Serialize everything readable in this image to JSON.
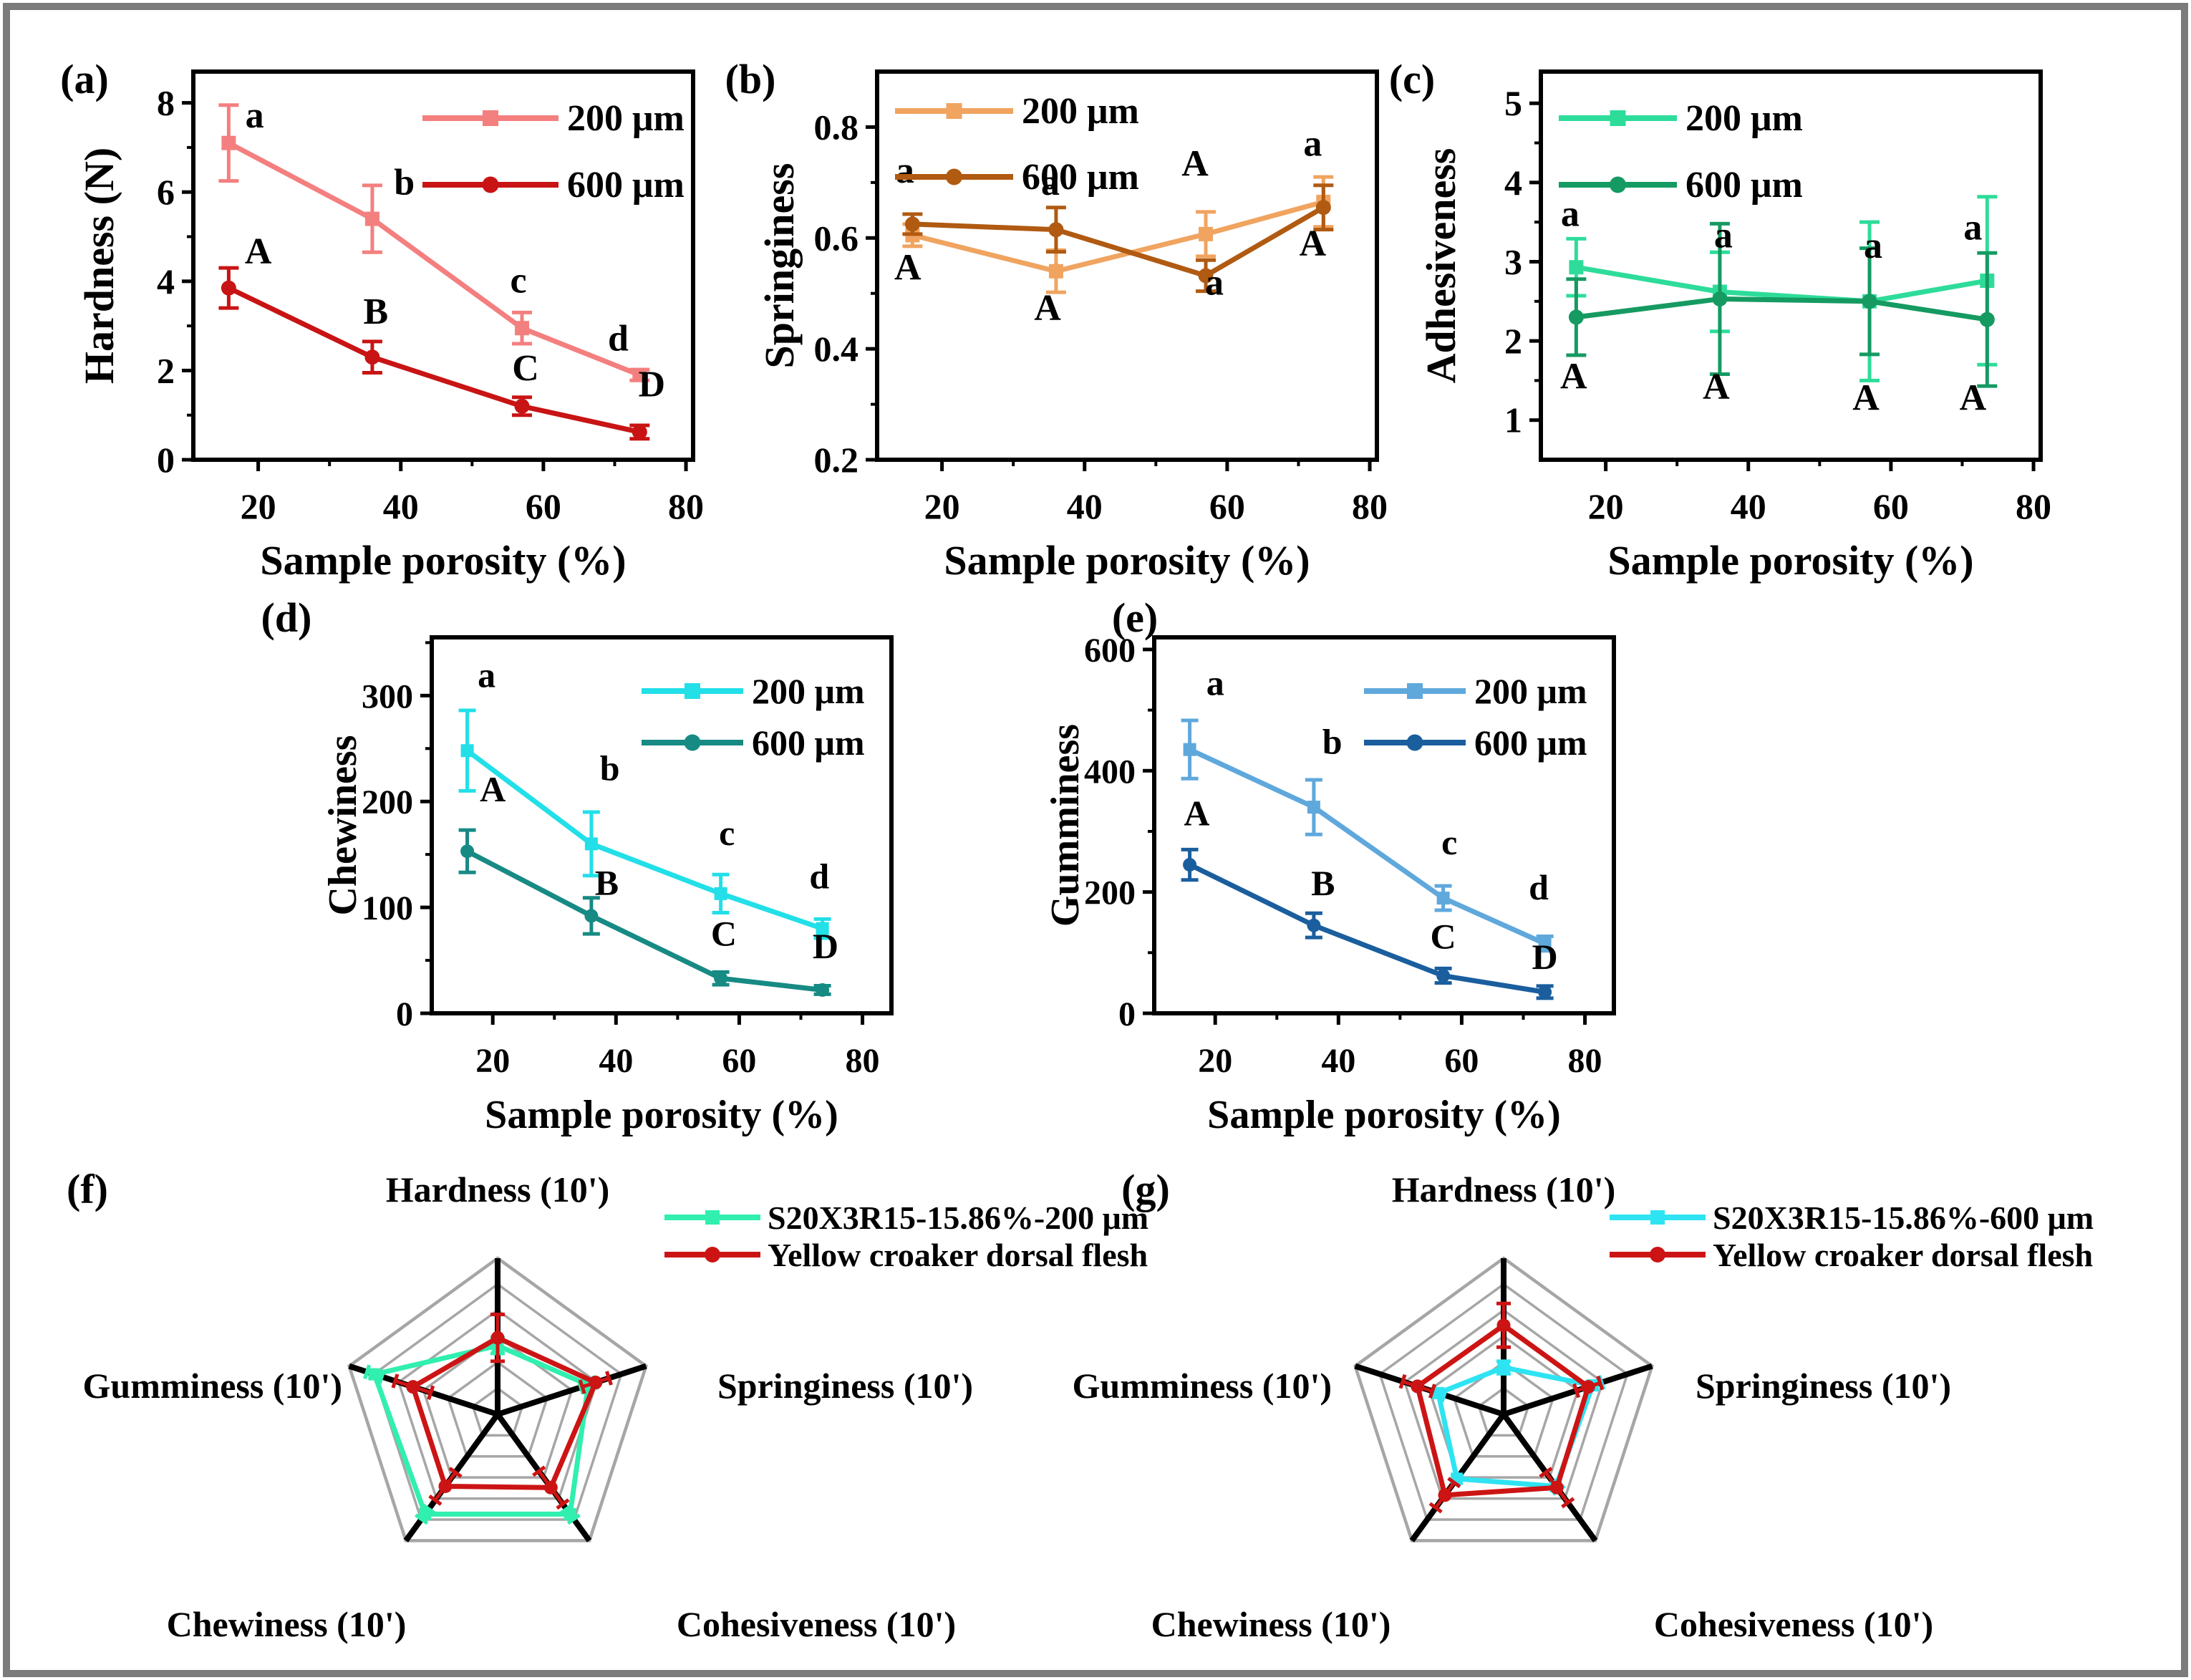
{
  "figure": {
    "background": "#ffffff",
    "border_color": "#7b7b7b"
  },
  "panel_labels": {
    "a": "(a)",
    "b": "(b)",
    "c": "(c)",
    "d": "(d)",
    "e": "(e)",
    "f": "(f)",
    "g": "(g)"
  },
  "chart_data": [
    {
      "id": "a",
      "type": "line",
      "xlabel": "Sample porosity (%)",
      "ylabel": "Hardness (N)",
      "xlim": [
        10.9,
        81
      ],
      "ylim": [
        0,
        8.7
      ],
      "xticks": [
        20,
        40,
        60,
        80
      ],
      "xminor": [
        30,
        50,
        70
      ],
      "yticks": [
        0,
        2,
        4,
        6,
        8
      ],
      "yminor": [
        1,
        3,
        5,
        7
      ],
      "grid": false,
      "legend_position": "top-right",
      "x": [
        15.86,
        36,
        57,
        73.5
      ],
      "series": [
        {
          "name": "200 μm",
          "color": "#F47F7F",
          "marker": "square",
          "values": [
            7.1,
            5.4,
            2.95,
            1.9
          ],
          "errors": [
            0.85,
            0.75,
            0.35,
            0.12
          ]
        },
        {
          "name": "600 μm",
          "color": "#C81414",
          "marker": "circle",
          "values": [
            3.85,
            2.3,
            1.2,
            0.62
          ],
          "errors": [
            0.45,
            0.35,
            0.2,
            0.15
          ]
        }
      ],
      "letters": [
        {
          "text": "a",
          "x": 19.5,
          "y": 7.45
        },
        {
          "text": "b",
          "x": 40.5,
          "y": 5.95
        },
        {
          "text": "c",
          "x": 56.5,
          "y": 3.75
        },
        {
          "text": "d",
          "x": 70.5,
          "y": 2.45
        },
        {
          "text": "A",
          "x": 20,
          "y": 4.4
        },
        {
          "text": "B",
          "x": 36.5,
          "y": 3.05
        },
        {
          "text": "C",
          "x": 57.5,
          "y": 1.78
        },
        {
          "text": "D",
          "x": 75.2,
          "y": 1.42
        }
      ]
    },
    {
      "id": "b",
      "type": "line",
      "xlabel": "Sample porosity (%)",
      "ylabel": "Springiness",
      "xlim": [
        10.9,
        81
      ],
      "ylim": [
        0.2,
        0.9
      ],
      "xticks": [
        20,
        40,
        60,
        80
      ],
      "xminor": [
        30,
        50,
        70
      ],
      "yticks": [
        0.2,
        0.4,
        0.6,
        0.8
      ],
      "yminor": [
        0.3,
        0.5,
        0.7
      ],
      "grid": false,
      "legend_position": "top-left",
      "x": [
        15.86,
        36,
        57,
        73.5
      ],
      "series": [
        {
          "name": "200 μm",
          "color": "#F0A460",
          "marker": "square",
          "values": [
            0.605,
            0.54,
            0.607,
            0.665
          ],
          "errors": [
            0.02,
            0.038,
            0.04,
            0.045
          ]
        },
        {
          "name": "600 μm",
          "color": "#B05A12",
          "marker": "circle",
          "values": [
            0.625,
            0.615,
            0.532,
            0.655
          ],
          "errors": [
            0.018,
            0.04,
            0.028,
            0.04
          ]
        }
      ],
      "letters": [
        {
          "text": "a",
          "x": 14.8,
          "y": 0.7
        },
        {
          "text": "A",
          "x": 15.2,
          "y": 0.525
        },
        {
          "text": "a",
          "x": 35.2,
          "y": 0.678
        },
        {
          "text": "A",
          "x": 34.8,
          "y": 0.452
        },
        {
          "text": "A",
          "x": 55.5,
          "y": 0.712
        },
        {
          "text": "a",
          "x": 58.2,
          "y": 0.498
        },
        {
          "text": "a",
          "x": 72,
          "y": 0.748
        },
        {
          "text": "A",
          "x": 72,
          "y": 0.568
        }
      ]
    },
    {
      "id": "c",
      "type": "line",
      "xlabel": "Sample porosity (%)",
      "ylabel": "Adhesiveness",
      "xlim": [
        10.9,
        81
      ],
      "ylim": [
        0.5,
        5.4
      ],
      "xticks": [
        20,
        40,
        60,
        80
      ],
      "xminor": [
        30,
        50,
        70
      ],
      "yticks": [
        1,
        2,
        3,
        4,
        5
      ],
      "yminor": [
        1.5,
        2.5,
        3.5,
        4.5
      ],
      "grid": false,
      "legend_position": "top-left",
      "x": [
        15.86,
        36,
        57,
        73.5
      ],
      "series": [
        {
          "name": "200 μm",
          "color": "#2EDC9A",
          "marker": "square",
          "values": [
            2.93,
            2.62,
            2.5,
            2.76
          ],
          "errors": [
            0.36,
            0.5,
            1.0,
            1.06
          ]
        },
        {
          "name": "600 μm",
          "color": "#159A62",
          "marker": "circle",
          "values": [
            2.3,
            2.53,
            2.5,
            2.27
          ],
          "errors": [
            0.48,
            0.95,
            0.67,
            0.84
          ]
        }
      ],
      "letters": [
        {
          "text": "a",
          "x": 15,
          "y": 3.45
        },
        {
          "text": "a",
          "x": 36.5,
          "y": 3.18
        },
        {
          "text": "a",
          "x": 57.5,
          "y": 3.05
        },
        {
          "text": "a",
          "x": 71.5,
          "y": 3.28
        },
        {
          "text": "A",
          "x": 15.5,
          "y": 1.4
        },
        {
          "text": "A",
          "x": 35.5,
          "y": 1.27
        },
        {
          "text": "A",
          "x": 56.5,
          "y": 1.13
        },
        {
          "text": "A",
          "x": 71.5,
          "y": 1.13
        }
      ]
    },
    {
      "id": "d",
      "type": "line",
      "xlabel": "Sample porosity (%)",
      "ylabel": "Chewiness",
      "xlim": [
        10.1,
        84.7
      ],
      "ylim": [
        0,
        355
      ],
      "xticks": [
        20,
        40,
        60,
        80
      ],
      "xminor": [
        30,
        50,
        70
      ],
      "yticks": [
        0,
        100,
        200,
        300
      ],
      "yminor": [
        50,
        150,
        250,
        350
      ],
      "grid": false,
      "legend_position": "top-right",
      "x": [
        15.86,
        36,
        57,
        73.5
      ],
      "series": [
        {
          "name": "200 μm",
          "color": "#22DFE8",
          "marker": "square",
          "values": [
            248,
            160,
            113,
            80
          ],
          "errors": [
            38,
            30,
            18,
            9
          ]
        },
        {
          "name": "600 μm",
          "color": "#178A84",
          "marker": "circle",
          "values": [
            153,
            92,
            33,
            22
          ],
          "errors": [
            20,
            17,
            6,
            4
          ]
        }
      ],
      "letters": [
        {
          "text": "a",
          "x": 19,
          "y": 308
        },
        {
          "text": "b",
          "x": 39,
          "y": 220
        },
        {
          "text": "c",
          "x": 58,
          "y": 159
        },
        {
          "text": "d",
          "x": 73,
          "y": 118
        },
        {
          "text": "A",
          "x": 20,
          "y": 200
        },
        {
          "text": "B",
          "x": 38.5,
          "y": 112
        },
        {
          "text": "C",
          "x": 57.5,
          "y": 64
        },
        {
          "text": "D",
          "x": 74,
          "y": 52
        }
      ]
    },
    {
      "id": "e",
      "type": "line",
      "xlabel": "Sample porosity (%)",
      "ylabel": "Gumminess",
      "xlim": [
        10.1,
        84.7
      ],
      "ylim": [
        0,
        620
      ],
      "xticks": [
        20,
        40,
        60,
        80
      ],
      "xminor": [
        30,
        50,
        70
      ],
      "yticks": [
        0,
        200,
        400,
        600
      ],
      "yminor": [
        100,
        300,
        500
      ],
      "grid": false,
      "legend_position": "top-right",
      "x": [
        15.86,
        36,
        57,
        73.5
      ],
      "series": [
        {
          "name": "200 μm",
          "color": "#5FA8DC",
          "marker": "square",
          "values": [
            435,
            340,
            190,
            115
          ],
          "errors": [
            48,
            45,
            20,
            12
          ]
        },
        {
          "name": "600 μm",
          "color": "#1A5E9E",
          "marker": "circle",
          "values": [
            245,
            145,
            62,
            35
          ],
          "errors": [
            25,
            20,
            12,
            10
          ]
        }
      ],
      "letters": [
        {
          "text": "a",
          "x": 20,
          "y": 525
        },
        {
          "text": "b",
          "x": 39,
          "y": 428
        },
        {
          "text": "c",
          "x": 58,
          "y": 262
        },
        {
          "text": "d",
          "x": 72.5,
          "y": 188
        },
        {
          "text": "A",
          "x": 17,
          "y": 310
        },
        {
          "text": "B",
          "x": 37.5,
          "y": 195
        },
        {
          "text": "C",
          "x": 57,
          "y": 107
        },
        {
          "text": "D",
          "x": 73.5,
          "y": 73
        }
      ]
    },
    {
      "id": "f",
      "type": "radar",
      "rmax": 10,
      "rings": 6,
      "categories": [
        "Hardness (10')",
        "Springiness (10')",
        "Cohesiveness (10')",
        "Chewiness (10')",
        "Gumminess (10')"
      ],
      "series": [
        {
          "name": "S20X3R15-15.86%-200 μm",
          "color": "#30EFAF",
          "marker": "square",
          "values": [
            4.4,
            6.1,
            7.9,
            7.9,
            8.3
          ],
          "errors": [
            0.5,
            0.5,
            0.4,
            0.4,
            0.5
          ]
        },
        {
          "name": "Yellow croaker dorsal flesh",
          "color": "#CC1414",
          "marker": "circle",
          "values": [
            4.9,
            6.6,
            5.8,
            5.7,
            5.7
          ],
          "errors": [
            1.5,
            0.9,
            1.3,
            1.1,
            1.2
          ]
        }
      ]
    },
    {
      "id": "g",
      "type": "radar",
      "rmax": 10,
      "rings": 6,
      "categories": [
        "Hardness (10')",
        "Springiness (10')",
        "Cohesiveness (10')",
        "Chewiness (10')",
        "Gumminess (10')"
      ],
      "series": [
        {
          "name": "S20X3R15-15.86%-600 μm",
          "color": "#2EE4F2",
          "marker": "square",
          "values": [
            3.0,
            6.0,
            5.7,
            5.1,
            4.4
          ],
          "errors": [
            0.4,
            0.6,
            0.3,
            0.3,
            0.4
          ]
        },
        {
          "name": "Yellow croaker dorsal flesh",
          "color": "#CC1414",
          "marker": "circle",
          "values": [
            5.7,
            5.7,
            5.8,
            6.4,
            5.8
          ],
          "errors": [
            1.4,
            0.8,
            1.2,
            1.0,
            1.0
          ]
        }
      ]
    }
  ]
}
